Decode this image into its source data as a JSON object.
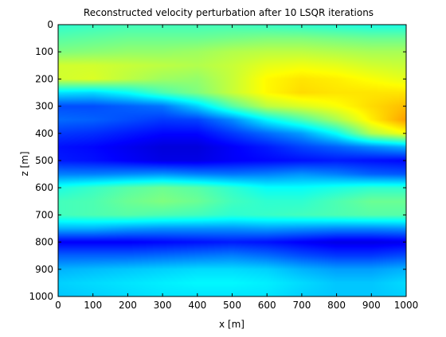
{
  "chart_data": {
    "type": "heatmap",
    "title": "Reconstructed velocity perturbation after 10 LSQR iterations",
    "xlabel": "x [m]",
    "ylabel": "z [m]",
    "xlim": [
      0,
      1000
    ],
    "ylim": [
      0,
      1000
    ],
    "y_reversed": true,
    "grid": false,
    "colormap": "jet",
    "xticks": [
      0,
      100,
      200,
      300,
      400,
      500,
      600,
      700,
      800,
      900,
      1000
    ],
    "yticks": [
      0,
      100,
      200,
      300,
      400,
      500,
      600,
      700,
      800,
      900,
      1000
    ],
    "xtick_labels": [
      "0",
      "100",
      "200",
      "300",
      "400",
      "500",
      "600",
      "700",
      "800",
      "900",
      "1000"
    ],
    "ytick_labels": [
      "0",
      "100",
      "200",
      "300",
      "400",
      "500",
      "600",
      "700",
      "800",
      "900",
      "1000"
    ],
    "x": [
      0,
      100,
      200,
      300,
      400,
      500,
      600,
      700,
      800,
      900,
      1000
    ],
    "z": [
      0,
      50,
      100,
      150,
      200,
      250,
      300,
      350,
      400,
      450,
      500,
      550,
      600,
      650,
      700,
      750,
      800,
      850,
      900,
      950,
      1000
    ],
    "values": [
      [
        0.42,
        0.43,
        0.44,
        0.44,
        0.44,
        0.44,
        0.43,
        0.42,
        0.41,
        0.4,
        0.4
      ],
      [
        0.46,
        0.47,
        0.48,
        0.48,
        0.48,
        0.49,
        0.5,
        0.5,
        0.49,
        0.48,
        0.48
      ],
      [
        0.5,
        0.51,
        0.52,
        0.52,
        0.53,
        0.55,
        0.56,
        0.56,
        0.55,
        0.54,
        0.54
      ],
      [
        0.58,
        0.58,
        0.57,
        0.56,
        0.55,
        0.57,
        0.6,
        0.61,
        0.6,
        0.58,
        0.57
      ],
      [
        0.58,
        0.59,
        0.56,
        0.53,
        0.52,
        0.57,
        0.63,
        0.65,
        0.64,
        0.62,
        0.6
      ],
      [
        0.35,
        0.34,
        0.38,
        0.45,
        0.5,
        0.57,
        0.63,
        0.66,
        0.65,
        0.65,
        0.65
      ],
      [
        0.2,
        0.2,
        0.22,
        0.24,
        0.33,
        0.46,
        0.56,
        0.59,
        0.62,
        0.66,
        0.69
      ],
      [
        0.23,
        0.22,
        0.2,
        0.18,
        0.19,
        0.26,
        0.37,
        0.45,
        0.54,
        0.64,
        0.72
      ],
      [
        0.18,
        0.17,
        0.15,
        0.13,
        0.13,
        0.18,
        0.23,
        0.28,
        0.38,
        0.55,
        0.62
      ],
      [
        0.14,
        0.13,
        0.11,
        0.09,
        0.09,
        0.12,
        0.15,
        0.19,
        0.22,
        0.26,
        0.3
      ],
      [
        0.15,
        0.14,
        0.12,
        0.1,
        0.1,
        0.12,
        0.13,
        0.14,
        0.15,
        0.14,
        0.13
      ],
      [
        0.25,
        0.25,
        0.26,
        0.27,
        0.25,
        0.24,
        0.25,
        0.27,
        0.25,
        0.22,
        0.21
      ],
      [
        0.4,
        0.43,
        0.46,
        0.48,
        0.46,
        0.42,
        0.38,
        0.38,
        0.4,
        0.42,
        0.42
      ],
      [
        0.44,
        0.45,
        0.48,
        0.5,
        0.48,
        0.44,
        0.42,
        0.42,
        0.45,
        0.48,
        0.48
      ],
      [
        0.44,
        0.45,
        0.46,
        0.45,
        0.44,
        0.42,
        0.43,
        0.44,
        0.45,
        0.46,
        0.46
      ],
      [
        0.3,
        0.3,
        0.28,
        0.27,
        0.27,
        0.27,
        0.28,
        0.27,
        0.26,
        0.26,
        0.27
      ],
      [
        0.12,
        0.12,
        0.12,
        0.13,
        0.14,
        0.15,
        0.14,
        0.12,
        0.1,
        0.1,
        0.11
      ],
      [
        0.22,
        0.22,
        0.22,
        0.23,
        0.24,
        0.25,
        0.23,
        0.2,
        0.18,
        0.18,
        0.2
      ],
      [
        0.3,
        0.31,
        0.32,
        0.33,
        0.34,
        0.34,
        0.33,
        0.3,
        0.28,
        0.28,
        0.3
      ],
      [
        0.33,
        0.34,
        0.35,
        0.36,
        0.37,
        0.37,
        0.36,
        0.34,
        0.32,
        0.32,
        0.34
      ],
      [
        0.32,
        0.33,
        0.34,
        0.35,
        0.35,
        0.35,
        0.35,
        0.33,
        0.32,
        0.32,
        0.33
      ]
    ]
  }
}
